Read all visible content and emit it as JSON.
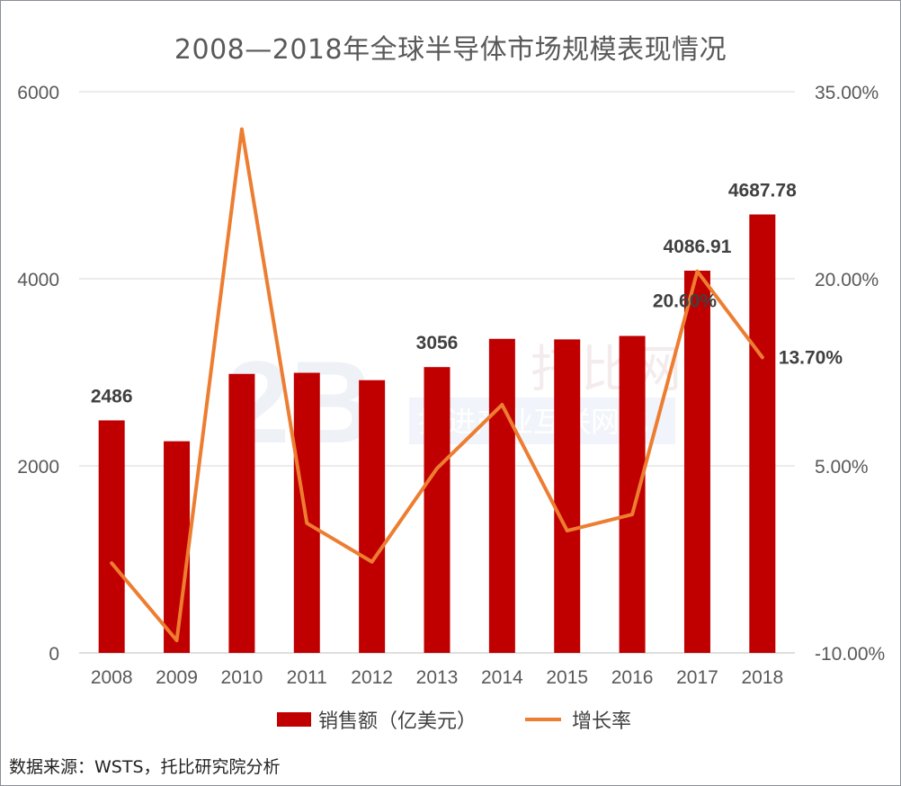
{
  "chart_data": {
    "type": "bar+line",
    "title": "2008—2018年全球半导体市场规模表现情况",
    "categories": [
      "2008",
      "2009",
      "2010",
      "2011",
      "2012",
      "2013",
      "2014",
      "2015",
      "2016",
      "2017",
      "2018"
    ],
    "series": [
      {
        "name": "销售额（亿美元）",
        "type": "bar",
        "axis": "left",
        "color": "#c00000",
        "values": [
          2486,
          2263,
          2983,
          2995,
          2916,
          3056,
          3358,
          3352,
          3389,
          4086.91,
          4687.78
        ]
      },
      {
        "name": "增长率",
        "type": "line",
        "axis": "right",
        "color": "#ed7d31",
        "values": [
          -2.8,
          -9.0,
          32.0,
          0.4,
          -2.7,
          4.8,
          9.9,
          -0.2,
          1.1,
          20.6,
          13.7
        ]
      }
    ],
    "left_axis": {
      "min": 0,
      "max": 6000,
      "ticks": [
        "0",
        "2000",
        "4000",
        "6000"
      ],
      "tick_values": [
        0,
        2000,
        4000,
        6000
      ]
    },
    "right_axis": {
      "min": -10,
      "max": 35,
      "ticks": [
        "-10.00%",
        "5.00%",
        "20.00%",
        "35.00%"
      ],
      "tick_values": [
        -10,
        5,
        20,
        35
      ]
    },
    "data_labels": [
      {
        "series": 0,
        "index": 0,
        "text": "2486"
      },
      {
        "series": 0,
        "index": 5,
        "text": "3056"
      },
      {
        "series": 0,
        "index": 9,
        "text": "4086.91"
      },
      {
        "series": 0,
        "index": 10,
        "text": "4687.78"
      },
      {
        "series": 1,
        "index": 9,
        "text": "20.60%"
      },
      {
        "series": 1,
        "index": 10,
        "text": "13.70%"
      }
    ],
    "grid": true,
    "legend_position": "bottom"
  },
  "legend": {
    "bar_label": "销售额（亿美元）",
    "line_label": "增长率"
  },
  "watermark": {
    "logo": "2B",
    "cn": "托比网",
    "slogan": "推进产业互联网化"
  },
  "source": "数据来源：WSTS，托比研究院分析"
}
